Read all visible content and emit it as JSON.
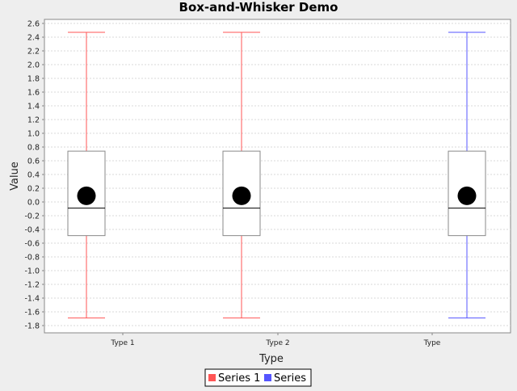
{
  "chart_data": {
    "type": "box",
    "title": "Box-and-Whisker Demo",
    "xlabel": "Type",
    "ylabel": "Value",
    "ylim": [
      -1.9,
      2.65
    ],
    "y_ticks": [
      2.6,
      2.4,
      2.2,
      2.0,
      1.8,
      1.6,
      1.4,
      1.2,
      1.0,
      0.8,
      0.6,
      0.4,
      0.2,
      0.0,
      -0.2,
      -0.4,
      -0.6,
      -0.8,
      -1.0,
      -1.2,
      -1.4,
      -1.6,
      -1.8
    ],
    "grid": true,
    "legend_position": "bottom",
    "categories": [
      "Type 1",
      "Type 2",
      "Type"
    ],
    "series": [
      {
        "name": "Series 1",
        "color": "#ff5555",
        "boxes": [
          {
            "category": "Type 1",
            "min": -1.69,
            "q1": -0.49,
            "median": -0.09,
            "q3": 0.74,
            "max": 2.47,
            "mean": 0.09
          },
          {
            "category": "Type 2",
            "min": -1.69,
            "q1": -0.49,
            "median": -0.09,
            "q3": 0.74,
            "max": 2.47,
            "mean": 0.09
          }
        ]
      },
      {
        "name": "Series",
        "color": "#5555ff",
        "boxes": [
          {
            "category": "Type",
            "min": -1.69,
            "q1": -0.49,
            "median": -0.09,
            "q3": 0.74,
            "max": 2.47,
            "mean": 0.09
          }
        ]
      }
    ]
  }
}
